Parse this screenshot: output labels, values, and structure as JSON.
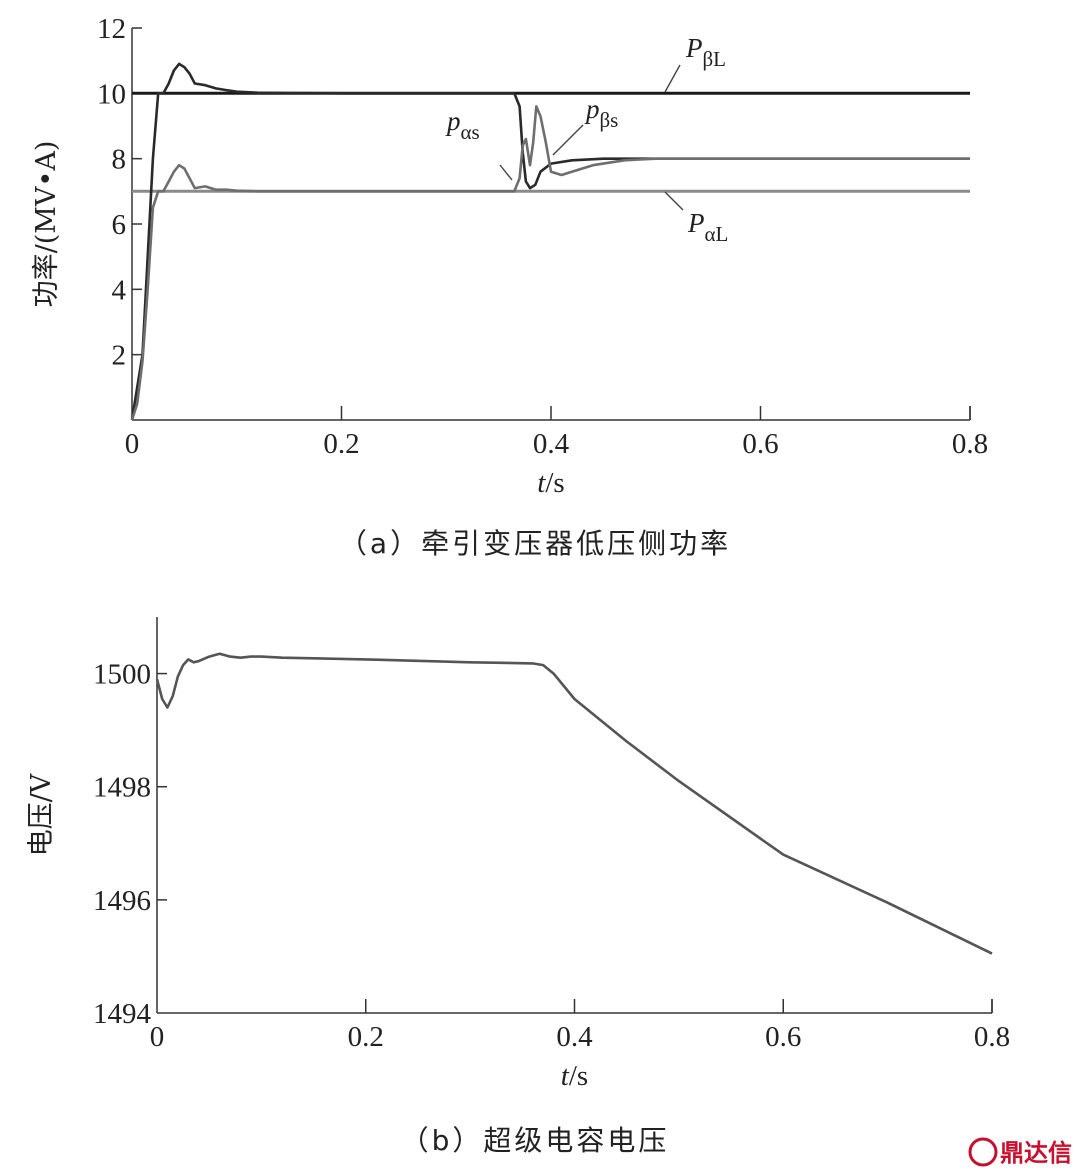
{
  "chart_data": [
    {
      "type": "line",
      "caption": "（a）牵引变压器低压侧功率",
      "xlabel_italic": "t",
      "xlabel_unit": "/s",
      "ylabel": "功率/(MV•A)",
      "xlim": [
        0,
        0.8
      ],
      "ylim": [
        0,
        12
      ],
      "xticks": [
        "0",
        "0.2",
        "0.4",
        "0.6",
        "0.8"
      ],
      "yticks": [
        "2",
        "4",
        "6",
        "8",
        "10",
        "12"
      ],
      "series": [
        {
          "name": "PβL",
          "color": "#1a1a1a",
          "x": [
            0,
            0.8
          ],
          "y": [
            10,
            10
          ]
        },
        {
          "name": "PαL",
          "color": "#8a8a8a",
          "x": [
            0,
            0.8
          ],
          "y": [
            7,
            7
          ]
        },
        {
          "name": "pβs",
          "color": "#2a2a2a",
          "x": [
            0,
            0.005,
            0.01,
            0.015,
            0.02,
            0.025,
            0.03,
            0.035,
            0.04,
            0.045,
            0.05,
            0.055,
            0.06,
            0.07,
            0.08,
            0.09,
            0.1,
            0.12,
            0.15,
            0.2,
            0.3,
            0.35,
            0.365,
            0.37,
            0.373,
            0.376,
            0.38,
            0.385,
            0.39,
            0.4,
            0.42,
            0.45,
            0.5,
            0.6,
            0.8
          ],
          "y": [
            0,
            1,
            2,
            5,
            8,
            10,
            10,
            10.3,
            10.7,
            10.9,
            10.8,
            10.6,
            10.3,
            10.25,
            10.15,
            10.1,
            10.05,
            10.02,
            10.01,
            10,
            10,
            10,
            10,
            9.6,
            8.2,
            7.3,
            7.1,
            7.2,
            7.6,
            7.85,
            7.95,
            8,
            8,
            8,
            8
          ]
        },
        {
          "name": "pαs",
          "color": "#6e6e6e",
          "x": [
            0,
            0.005,
            0.01,
            0.015,
            0.02,
            0.025,
            0.03,
            0.035,
            0.04,
            0.045,
            0.05,
            0.055,
            0.06,
            0.07,
            0.08,
            0.09,
            0.1,
            0.12,
            0.2,
            0.35,
            0.365,
            0.37,
            0.373,
            0.376,
            0.38,
            0.383,
            0.386,
            0.39,
            0.395,
            0.4,
            0.41,
            0.42,
            0.44,
            0.47,
            0.5,
            0.8
          ],
          "y": [
            0,
            0.5,
            1.8,
            4,
            6.5,
            7,
            7,
            7.3,
            7.6,
            7.8,
            7.7,
            7.4,
            7.1,
            7.15,
            7.05,
            7.05,
            7.02,
            7,
            7,
            7,
            7,
            7.4,
            8.4,
            8.6,
            7.8,
            8.5,
            9.6,
            9.3,
            8.5,
            7.6,
            7.5,
            7.6,
            7.8,
            7.95,
            8,
            8
          ]
        }
      ],
      "labels": [
        {
          "series": "PβL",
          "base": "P",
          "sub": "βL"
        },
        {
          "series": "pαs",
          "base": "p",
          "sub": "αs"
        },
        {
          "series": "pβs",
          "base": "p",
          "sub": "βs"
        },
        {
          "series": "PαL",
          "base": "P",
          "sub": "αL"
        }
      ]
    },
    {
      "type": "line",
      "caption": "（b）超级电容电压",
      "xlabel_italic": "t",
      "xlabel_unit": "/s",
      "ylabel": "电压/V",
      "xlim": [
        0,
        0.8
      ],
      "ylim": [
        1494,
        1501
      ],
      "xticks": [
        "0",
        "0.2",
        "0.4",
        "0.6",
        "0.8"
      ],
      "yticks": [
        "1494",
        "1496",
        "1498",
        "1500"
      ],
      "series": [
        {
          "name": "",
          "color": "#555555",
          "x": [
            0,
            0.005,
            0.01,
            0.015,
            0.02,
            0.025,
            0.03,
            0.035,
            0.04,
            0.05,
            0.06,
            0.07,
            0.08,
            0.09,
            0.1,
            0.12,
            0.15,
            0.2,
            0.3,
            0.36,
            0.37,
            0.38,
            0.4,
            0.45,
            0.5,
            0.6,
            0.7,
            0.8
          ],
          "y": [
            1499.9,
            1499.55,
            1499.4,
            1499.6,
            1499.95,
            1500.15,
            1500.25,
            1500.2,
            1500.22,
            1500.3,
            1500.35,
            1500.3,
            1500.28,
            1500.3,
            1500.3,
            1500.28,
            1500.27,
            1500.25,
            1500.2,
            1500.18,
            1500.15,
            1500.0,
            1499.55,
            1498.8,
            1498.1,
            1496.8,
            1495.95,
            1495.05
          ]
        }
      ]
    }
  ],
  "watermark": "鼎达信"
}
